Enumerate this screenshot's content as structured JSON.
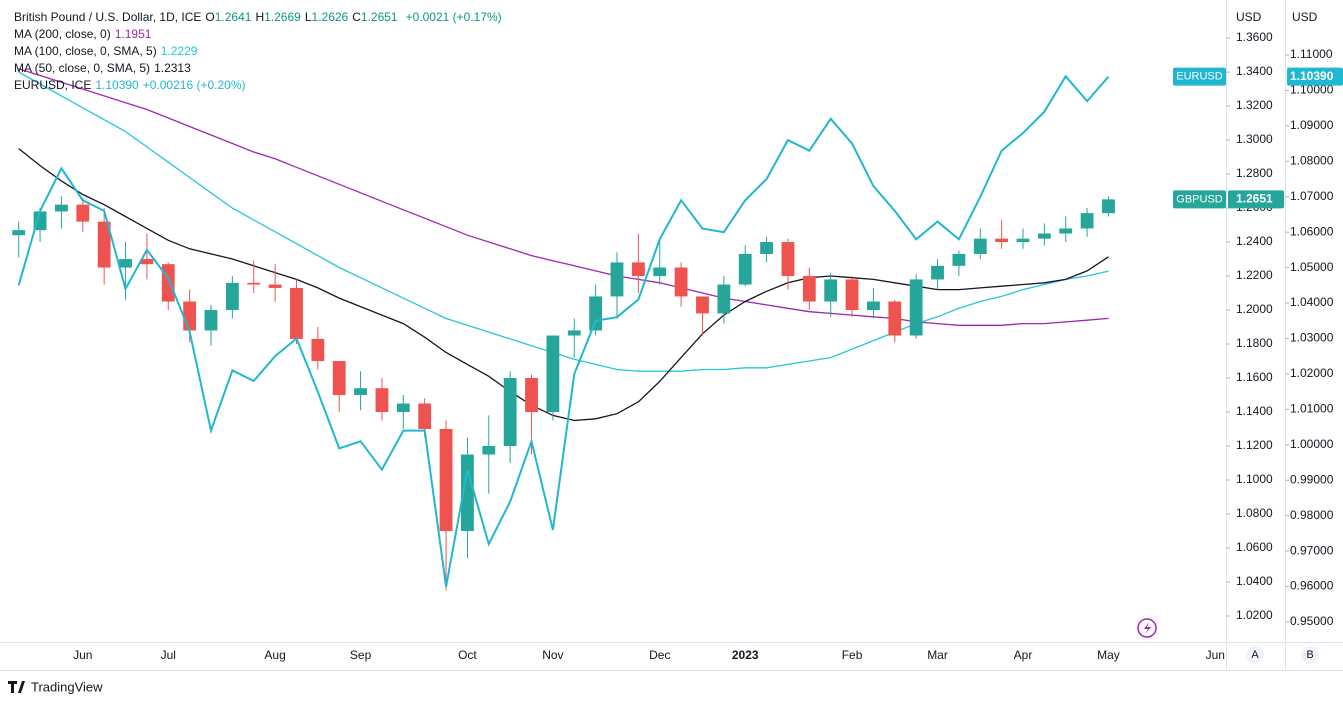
{
  "chart_data": {
    "type": "candlestick",
    "header": {
      "title": "British Pound / U.S. Dollar, 1D, ICE",
      "ohlc": [
        {
          "key": "O",
          "value": 1.2641
        },
        {
          "key": "H",
          "value": 1.2669
        },
        {
          "key": "L",
          "value": 1.2626
        },
        {
          "key": "C",
          "value": 1.2651
        }
      ],
      "change": "+0.0021 (+0.17%)"
    },
    "y_unit": "USD",
    "y2_unit": "USD",
    "categories": [
      null,
      null,
      null,
      "Jun",
      null,
      null,
      null,
      "Jul",
      null,
      null,
      null,
      null,
      "Aug",
      null,
      null,
      null,
      "Sep",
      null,
      null,
      null,
      null,
      "Oct",
      null,
      null,
      null,
      "Nov",
      null,
      null,
      null,
      null,
      "Dec",
      null,
      null,
      null,
      "2023",
      null,
      null,
      null,
      null,
      "Feb",
      null,
      null,
      null,
      "Mar",
      null,
      null,
      null,
      "Apr",
      null,
      null,
      null,
      "May",
      null,
      null,
      null,
      null,
      "Jun"
    ],
    "ylim": [
      1.0047,
      1.3824
    ],
    "yticks": [
      {
        "value": 1.02,
        "label": "1.0200"
      },
      {
        "value": 1.04,
        "label": "1.0400"
      },
      {
        "value": 1.06,
        "label": "1.0600"
      },
      {
        "value": 1.08,
        "label": "1.0800"
      },
      {
        "value": 1.1,
        "label": "1.1000"
      },
      {
        "value": 1.12,
        "label": "1.1200"
      },
      {
        "value": 1.14,
        "label": "1.1400"
      },
      {
        "value": 1.16,
        "label": "1.1600"
      },
      {
        "value": 1.18,
        "label": "1.1800"
      },
      {
        "value": 1.2,
        "label": "1.2000"
      },
      {
        "value": 1.22,
        "label": "1.2200"
      },
      {
        "value": 1.24,
        "label": "1.2400"
      },
      {
        "value": 1.26,
        "label": "1.2600"
      },
      {
        "value": 1.28,
        "label": "1.2800"
      },
      {
        "value": 1.3,
        "label": "1.3000"
      },
      {
        "value": 1.32,
        "label": "1.3200"
      },
      {
        "value": 1.34,
        "label": "1.3400"
      },
      {
        "value": 1.36,
        "label": "1.3600"
      }
    ],
    "y2lim": [
      0.94436,
      1.12552
    ],
    "y2ticks": [
      {
        "value": 0.95,
        "label": "0.95000"
      },
      {
        "value": 0.96,
        "label": "0.96000"
      },
      {
        "value": 0.97,
        "label": "0.97000"
      },
      {
        "value": 0.98,
        "label": "0.98000"
      },
      {
        "value": 0.99,
        "label": "0.99000"
      },
      {
        "value": 1.0,
        "label": "1.00000"
      },
      {
        "value": 1.01,
        "label": "1.01000"
      },
      {
        "value": 1.02,
        "label": "1.02000"
      },
      {
        "value": 1.03,
        "label": "1.03000"
      },
      {
        "value": 1.04,
        "label": "1.04000"
      },
      {
        "value": 1.05,
        "label": "1.05000"
      },
      {
        "value": 1.06,
        "label": "1.06000"
      },
      {
        "value": 1.07,
        "label": "1.07000"
      },
      {
        "value": 1.08,
        "label": "1.08000"
      },
      {
        "value": 1.09,
        "label": "1.09000"
      },
      {
        "value": 1.1,
        "label": "1.10000"
      },
      {
        "value": 1.11,
        "label": "1.11000"
      }
    ],
    "grid": false,
    "series": [
      {
        "name": "GBPUSD",
        "type": "candlestick",
        "up_color": "#26a69a",
        "down_color": "#ef5350",
        "open": [
          1.244,
          1.247,
          1.258,
          1.262,
          1.252,
          1.225,
          1.23,
          1.227,
          1.205,
          1.188,
          1.2,
          1.216,
          1.215,
          1.213,
          1.183,
          1.17,
          1.15,
          1.154,
          1.14,
          1.145,
          1.13,
          1.07,
          1.115,
          1.12,
          1.16,
          1.14,
          1.185,
          1.188,
          1.208,
          1.228,
          1.22,
          1.225,
          1.208,
          1.198,
          1.215,
          1.233,
          1.24,
          1.22,
          1.205,
          1.218,
          1.2,
          1.205,
          1.185,
          1.218,
          1.226,
          1.233,
          1.242,
          1.24,
          1.242,
          1.245,
          1.248,
          1.257,
          null,
          null,
          null,
          null,
          null
        ],
        "high": [
          1.252,
          1.26,
          1.267,
          1.266,
          1.26,
          1.24,
          1.245,
          1.228,
          1.212,
          1.203,
          1.22,
          1.229,
          1.227,
          1.218,
          1.19,
          1.17,
          1.164,
          1.16,
          1.15,
          1.148,
          1.135,
          1.125,
          1.138,
          1.164,
          1.162,
          1.185,
          1.195,
          1.215,
          1.234,
          1.245,
          1.242,
          1.228,
          1.208,
          1.22,
          1.238,
          1.243,
          1.242,
          1.225,
          1.222,
          1.22,
          1.213,
          1.206,
          1.221,
          1.23,
          1.235,
          1.248,
          1.253,
          1.248,
          1.251,
          1.255,
          1.26,
          1.2669,
          null,
          null,
          null,
          null,
          null
        ],
        "low": [
          1.231,
          1.24,
          1.248,
          1.246,
          1.215,
          1.206,
          1.218,
          1.2,
          1.181,
          1.179,
          1.195,
          1.21,
          1.205,
          1.18,
          1.165,
          1.14,
          1.141,
          1.135,
          1.13,
          1.125,
          1.035,
          1.054,
          1.092,
          1.11,
          1.115,
          1.135,
          1.172,
          1.185,
          1.195,
          1.21,
          1.215,
          1.202,
          1.185,
          1.192,
          1.214,
          1.228,
          1.212,
          1.2,
          1.196,
          1.196,
          1.195,
          1.181,
          1.183,
          1.212,
          1.22,
          1.23,
          1.236,
          1.236,
          1.238,
          1.24,
          1.243,
          1.255,
          null,
          null,
          null,
          null,
          null
        ],
        "close": [
          1.247,
          1.258,
          1.262,
          1.252,
          1.225,
          1.23,
          1.227,
          1.205,
          1.188,
          1.2,
          1.216,
          1.215,
          1.213,
          1.183,
          1.17,
          1.15,
          1.154,
          1.14,
          1.145,
          1.13,
          1.07,
          1.115,
          1.12,
          1.16,
          1.14,
          1.185,
          1.188,
          1.208,
          1.228,
          1.22,
          1.225,
          1.208,
          1.198,
          1.215,
          1.233,
          1.24,
          1.22,
          1.205,
          1.218,
          1.2,
          1.205,
          1.185,
          1.218,
          1.226,
          1.233,
          1.242,
          1.24,
          1.242,
          1.245,
          1.248,
          1.257,
          1.2651,
          null,
          null,
          null,
          null,
          null
        ]
      },
      {
        "name": "MA (200, close, 0)",
        "type": "line",
        "color": "#9c27b0",
        "legend_value": 1.1951,
        "values": [
          1.342,
          1.338,
          1.334,
          1.33,
          1.326,
          1.322,
          1.318,
          1.313,
          1.308,
          1.303,
          1.298,
          1.293,
          1.289,
          1.284,
          1.279,
          1.274,
          1.269,
          1.264,
          1.259,
          1.254,
          1.249,
          1.244,
          1.24,
          1.236,
          1.232,
          1.229,
          1.226,
          1.223,
          1.22,
          1.218,
          1.216,
          1.213,
          1.21,
          1.207,
          1.205,
          1.203,
          1.201,
          1.199,
          1.198,
          1.197,
          1.196,
          1.195,
          1.193,
          1.192,
          1.191,
          1.191,
          1.191,
          1.192,
          1.192,
          1.193,
          1.194,
          1.1951,
          null,
          null,
          null,
          null,
          null
        ]
      },
      {
        "name": "MA (100, close, 0, SMA, 5)",
        "type": "line",
        "color": "#26c6da",
        "legend_value": 1.2229,
        "values": [
          1.34,
          1.333,
          1.326,
          1.319,
          1.312,
          1.305,
          1.296,
          1.287,
          1.278,
          1.269,
          1.26,
          1.253,
          1.246,
          1.239,
          1.232,
          1.225,
          1.219,
          1.213,
          1.207,
          1.201,
          1.195,
          1.191,
          1.187,
          1.183,
          1.179,
          1.175,
          1.171,
          1.168,
          1.165,
          1.164,
          1.164,
          1.164,
          1.165,
          1.165,
          1.166,
          1.166,
          1.168,
          1.17,
          1.172,
          1.177,
          1.182,
          1.187,
          1.192,
          1.196,
          1.201,
          1.205,
          1.208,
          1.212,
          1.215,
          1.218,
          1.22,
          1.2229,
          null,
          null,
          null,
          null,
          null
        ]
      },
      {
        "name": "MA (50, close, 0, SMA, 5)",
        "type": "line",
        "color": "#131722",
        "legend_value": 1.2313,
        "values": [
          1.295,
          1.285,
          1.276,
          1.268,
          1.262,
          1.255,
          1.248,
          1.241,
          1.236,
          1.233,
          1.23,
          1.226,
          1.222,
          1.218,
          1.213,
          1.207,
          1.202,
          1.197,
          1.192,
          1.184,
          1.175,
          1.168,
          1.161,
          1.152,
          1.144,
          1.138,
          1.135,
          1.136,
          1.139,
          1.146,
          1.158,
          1.172,
          1.186,
          1.197,
          1.205,
          1.211,
          1.216,
          1.219,
          1.22,
          1.219,
          1.218,
          1.216,
          1.214,
          1.212,
          1.212,
          1.213,
          1.214,
          1.215,
          1.216,
          1.218,
          1.223,
          1.2313,
          null,
          null,
          null,
          null,
          null
        ]
      },
      {
        "name": "EURUSD, ICE",
        "tag": "EURUSD",
        "type": "line",
        "axis": "y2",
        "color": "#22b7d0",
        "legend_value": {
          "value": 1.1039,
          "label": "1.10390"
        },
        "change": "+0.00216 (+0.20%)",
        "values": [
          1.045,
          1.066,
          1.078,
          1.069,
          1.066,
          1.044,
          1.055,
          1.047,
          1.032,
          1.004,
          1.021,
          1.018,
          1.025,
          1.03,
          1.015,
          0.999,
          1.001,
          0.993,
          1.004,
          1.004,
          0.96,
          0.993,
          0.972,
          0.984,
          1.001,
          0.976,
          1.02,
          1.035,
          1.036,
          1.041,
          1.058,
          1.069,
          1.061,
          1.06,
          1.069,
          1.075,
          1.086,
          1.083,
          1.092,
          1.085,
          1.073,
          1.066,
          1.058,
          1.063,
          1.058,
          1.07,
          1.083,
          1.088,
          1.094,
          1.104,
          1.097,
          1.1039,
          null,
          null,
          null,
          null,
          null
        ]
      }
    ],
    "axis_buttons": [
      "A",
      "B"
    ],
    "brand": "TradingView"
  }
}
